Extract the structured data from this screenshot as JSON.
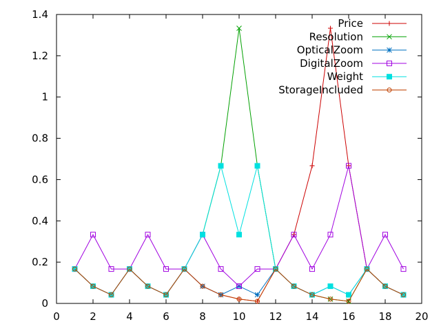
{
  "chart_data": {
    "type": "line",
    "title": "",
    "xlabel": "",
    "ylabel": "",
    "xlim": [
      0,
      20
    ],
    "ylim": [
      0,
      1.4
    ],
    "xticks": [
      "0",
      "2",
      "4",
      "6",
      "8",
      "10",
      "12",
      "14",
      "16",
      "18",
      "20"
    ],
    "yticks": [
      "0",
      "0.2",
      "0.4",
      "0.6",
      "0.8",
      "1",
      "1.2",
      "1.4"
    ],
    "xtick_values": [
      0,
      2,
      4,
      6,
      8,
      10,
      12,
      14,
      16,
      18,
      20
    ],
    "ytick_values": [
      0,
      0.2,
      0.4,
      0.6,
      0.8,
      1.0,
      1.2,
      1.4
    ],
    "grid": false,
    "legend_position": "top-right",
    "x": [
      1,
      2,
      3,
      4,
      5,
      6,
      7,
      8,
      9,
      10,
      11,
      12,
      13,
      14,
      15,
      16,
      17,
      18,
      19
    ],
    "series": [
      {
        "name": "Price",
        "color": "#cc0000",
        "marker": "plus",
        "values": [
          0.1667,
          0.0833,
          0.0417,
          0.1667,
          0.0833,
          0.0417,
          0.1667,
          0.0833,
          0.0417,
          0.0208,
          0.0104,
          0.1667,
          0.3333,
          0.6667,
          1.3333,
          0.6667,
          0.1667,
          0.0833,
          0.0417
        ]
      },
      {
        "name": "Resolution",
        "color": "#00a000",
        "marker": "cross",
        "values": [
          0.1667,
          0.0833,
          0.0417,
          0.1667,
          0.0833,
          0.0417,
          0.1667,
          0.3333,
          0.6667,
          1.3333,
          0.6667,
          0.1667,
          0.0833,
          0.0417,
          0.0208,
          0.0104,
          0.1667,
          0.0833,
          0.0417
        ]
      },
      {
        "name": "OpticalZoom",
        "color": "#0070c0",
        "marker": "star",
        "values": [
          0.1667,
          0.0833,
          0.0417,
          0.1667,
          0.0833,
          0.0417,
          0.1667,
          0.0833,
          0.0417,
          0.0833,
          0.0417,
          0.1667,
          0.0833,
          0.0417,
          0.0833,
          0.0417,
          0.1667,
          0.0833,
          0.0417
        ]
      },
      {
        "name": "DigitalZoom",
        "color": "#a000e0",
        "marker": "box",
        "values": [
          0.1667,
          0.3333,
          0.1667,
          0.1667,
          0.3333,
          0.1667,
          0.1667,
          0.3333,
          0.1667,
          0.0833,
          0.1667,
          0.1667,
          0.3333,
          0.1667,
          0.3333,
          0.6667,
          0.1667,
          0.3333,
          0.1667
        ]
      },
      {
        "name": "Weight",
        "color": "#00e0e0",
        "marker": "filledbox",
        "values": [
          0.1667,
          0.0833,
          0.0417,
          0.1667,
          0.0833,
          0.0417,
          0.1667,
          0.3333,
          0.6667,
          0.3333,
          0.6667,
          0.1667,
          0.0833,
          0.0417,
          0.0833,
          0.0417,
          0.1667,
          0.0833,
          0.0417
        ]
      },
      {
        "name": "StorageIncluded",
        "color": "#c04000",
        "marker": "circle",
        "values": [
          0.1667,
          0.0833,
          0.0417,
          0.1667,
          0.0833,
          0.0417,
          0.1667,
          0.0833,
          0.0417,
          0.0208,
          0.0104,
          0.1667,
          0.0833,
          0.0417,
          0.0208,
          0.0104,
          0.1667,
          0.0833,
          0.0417
        ]
      }
    ]
  }
}
